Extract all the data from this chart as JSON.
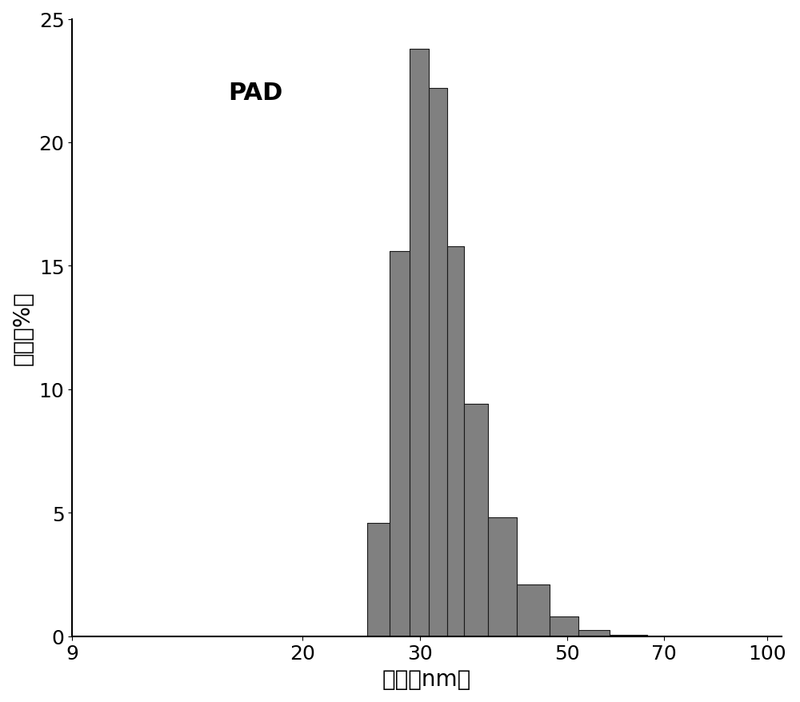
{
  "title": "PAD",
  "xlabel": "粒径（nm）",
  "ylabel": "数目（%）",
  "bar_color": "#808080",
  "bar_edge_color": "#1a1a1a",
  "background_color": "#ffffff",
  "bar_left_edges": [
    25,
    27,
    29,
    31,
    33,
    35,
    38,
    42,
    47,
    52,
    58
  ],
  "bar_right_edges": [
    27,
    29,
    31,
    33,
    35,
    38,
    42,
    47,
    52,
    58,
    66
  ],
  "bar_heights": [
    4.6,
    15.6,
    23.8,
    22.2,
    15.8,
    9.4,
    4.8,
    2.1,
    0.8,
    0.25,
    0.07
  ],
  "xlim_log": [
    9,
    105
  ],
  "ylim": [
    0,
    25
  ],
  "xticks": [
    9,
    20,
    30,
    50,
    70,
    100
  ],
  "yticks": [
    0,
    5,
    10,
    15,
    20,
    25
  ],
  "title_fontsize": 22,
  "label_fontsize": 20,
  "tick_fontsize": 18
}
